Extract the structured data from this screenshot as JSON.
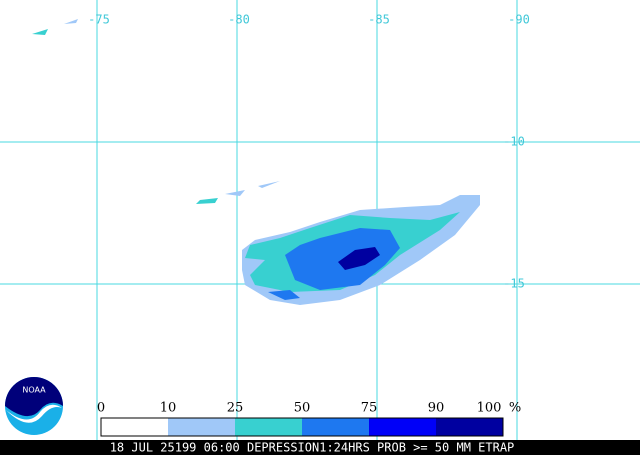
{
  "map": {
    "longitude_labels": [
      "-75",
      "-80",
      "-85",
      "-90"
    ],
    "latitude_labels": [
      "-10",
      "-15"
    ],
    "legend": {
      "labels": [
        "0",
        "10",
        "25",
        "50",
        "75",
        "90",
        "100"
      ],
      "unit": "%",
      "colors": [
        "#ffffff",
        "#a0c8f8",
        "#38d0d0",
        "#1e78f0",
        "#0000f8",
        "#0000a0"
      ]
    },
    "logo": "NOAA",
    "caption": "18 JUL 25199 06:00 DEPRESSION1:24HRS PROB >= 50 MM ETRAP"
  }
}
